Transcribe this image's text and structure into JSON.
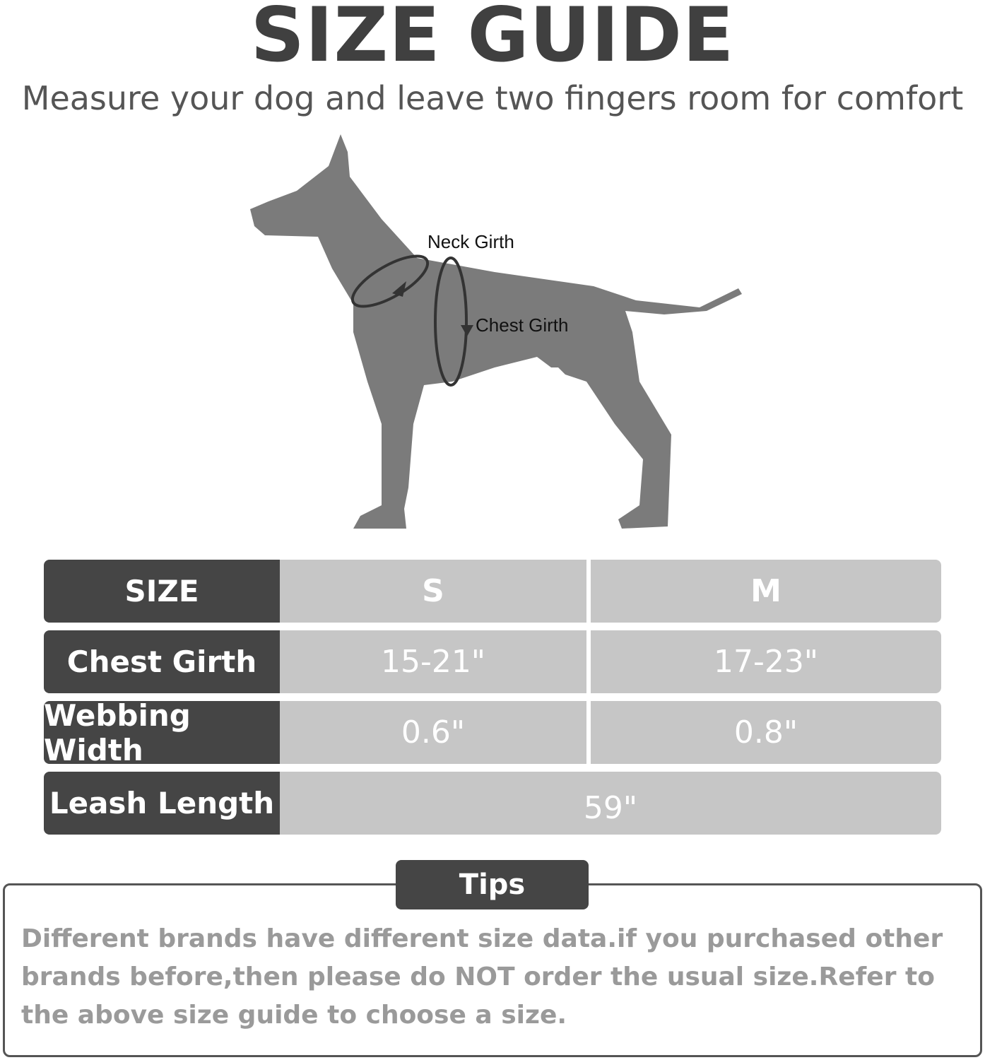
{
  "title": "SIZE GUIDE",
  "subtitle": "Measure your dog and leave two fingers room for comfort",
  "diagram": {
    "neck_label": "Neck Girth",
    "chest_label": "Chest Girth"
  },
  "table": {
    "header": {
      "label": "SIZE",
      "s": "S",
      "m": "M"
    },
    "rows": [
      {
        "label": "Chest Girth",
        "s": "15-21\"",
        "m": "17-23\""
      },
      {
        "label": "Webbing Width",
        "s": "0.6\"",
        "m": "0.8\""
      }
    ],
    "leash": {
      "label": "Leash Length",
      "value": "59\""
    }
  },
  "tips": {
    "label": "Tips",
    "text": "Different brands have different size data.if you purchased other brands before,then please do NOT order the usual size.Refer to the above size guide to choose a size."
  },
  "colors": {
    "dark": "#454545",
    "light": "#c6c6c6",
    "dog": "#7b7b7b"
  }
}
